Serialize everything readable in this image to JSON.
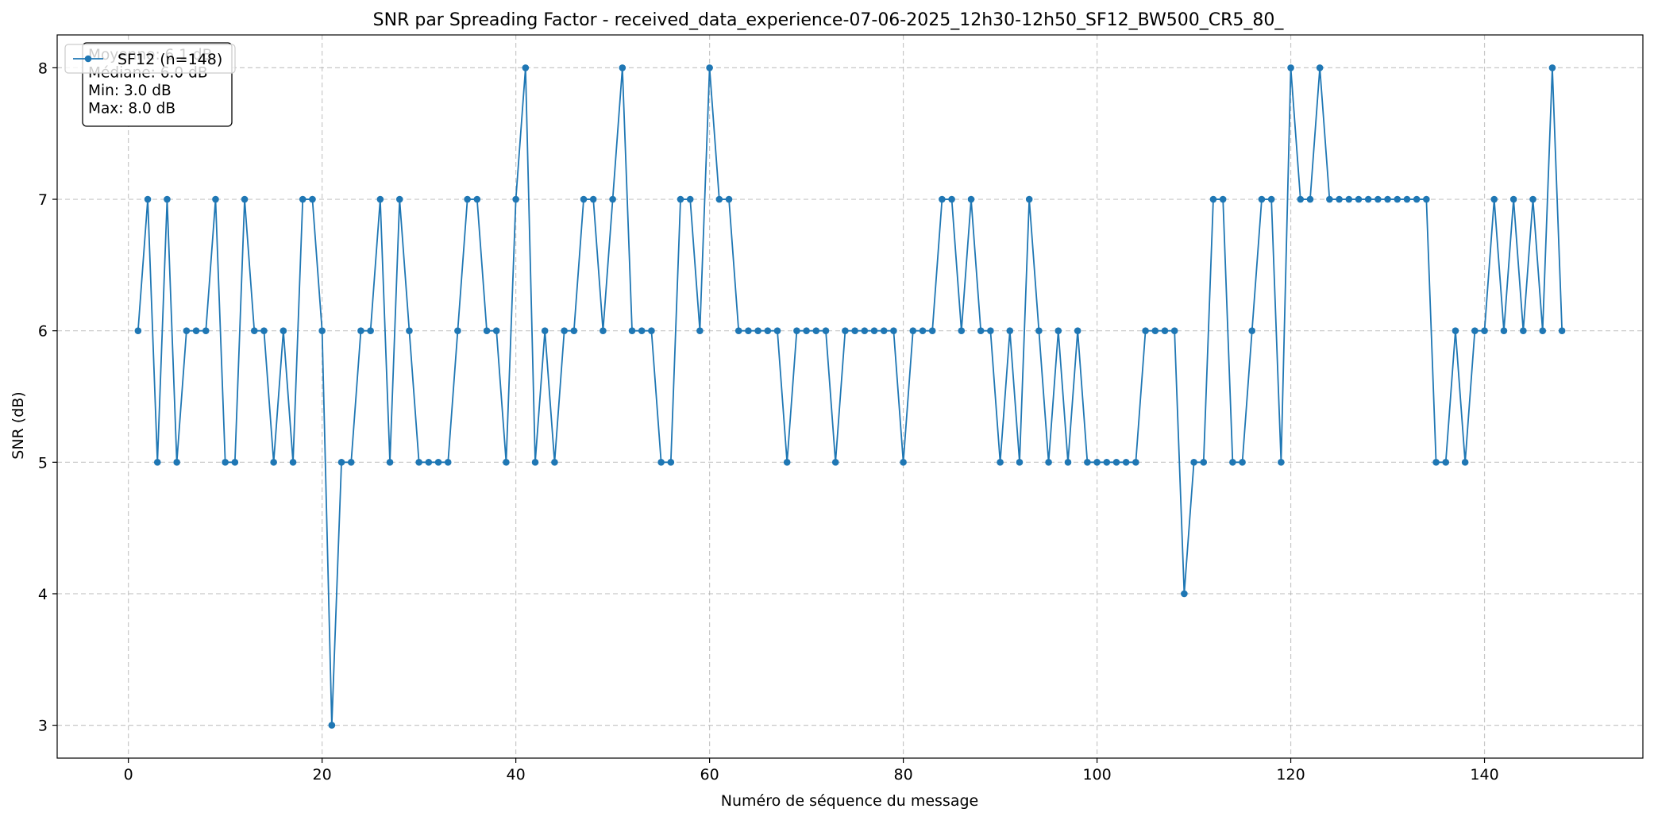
{
  "chart_data": {
    "type": "line",
    "title": "SNR par Spreading Factor - received_data_experience-07-06-2025_12h30-12h50_SF12_BW500_CR5_80_",
    "xlabel": "Numéro de séquence du message",
    "ylabel": "SNR (dB)",
    "xlim": [
      -7.35,
      156.35
    ],
    "ylim": [
      2.75,
      8.25
    ],
    "xticks": [
      0,
      20,
      40,
      60,
      80,
      100,
      120,
      140
    ],
    "yticks": [
      3,
      4,
      5,
      6,
      7,
      8
    ],
    "grid": true,
    "legend_position": "top-left",
    "series": [
      {
        "name": "SF12 (n=148)",
        "color": "#1f77b4",
        "marker": "circle",
        "x_start": 1,
        "values": [
          6,
          7,
          5,
          7,
          5,
          6,
          6,
          6,
          7,
          5,
          5,
          7,
          6,
          6,
          5,
          6,
          5,
          7,
          7,
          6,
          3,
          5,
          5,
          6,
          6,
          7,
          5,
          7,
          6,
          5,
          5,
          5,
          5,
          6,
          7,
          7,
          6,
          6,
          5,
          7,
          8,
          5,
          6,
          5,
          6,
          6,
          7,
          7,
          6,
          7,
          8,
          6,
          6,
          6,
          5,
          5,
          7,
          7,
          6,
          8,
          7,
          7,
          6,
          6,
          6,
          6,
          6,
          5,
          6,
          6,
          6,
          6,
          5,
          6,
          6,
          6,
          6,
          6,
          6,
          5,
          6,
          6,
          6,
          7,
          7,
          6,
          7,
          6,
          6,
          5,
          6,
          5,
          7,
          6,
          5,
          6,
          5,
          6,
          5,
          5,
          5,
          5,
          5,
          5,
          6,
          6,
          6,
          6,
          4,
          5,
          5,
          7,
          7,
          5,
          5,
          6,
          7,
          7,
          5,
          8,
          7,
          7,
          8,
          7,
          7,
          7,
          7,
          7,
          7,
          7,
          7,
          7,
          7,
          7,
          5,
          5,
          6,
          5,
          6,
          6,
          7,
          6,
          7,
          6,
          7,
          6,
          8,
          6
        ]
      }
    ],
    "stats_box": {
      "lines": [
        "Moyenne: 6.1 dB",
        "Médiane: 6.0 dB",
        "Min: 3.0 dB",
        "Max: 8.0 dB"
      ]
    }
  }
}
